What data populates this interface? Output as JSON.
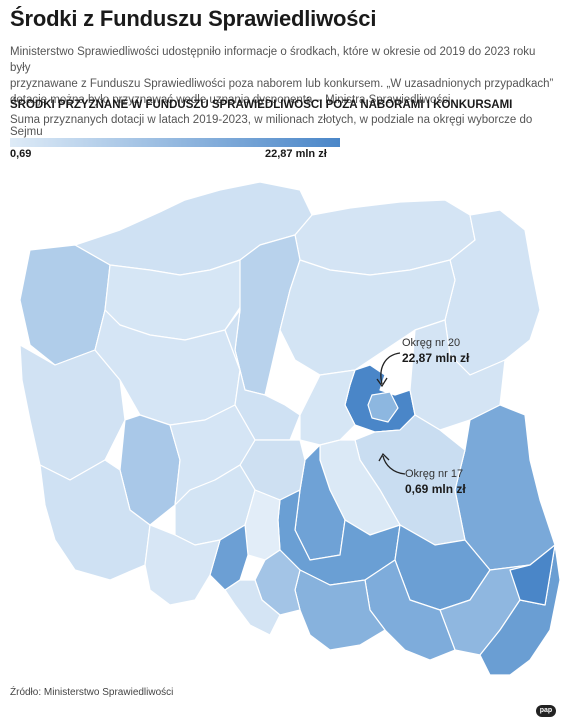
{
  "header": {
    "title": "Środki z Funduszu Sprawiedliwości",
    "intro_lines": [
      "Ministerstwo Sprawiedliwości udostępniło informacje o środkach, które w okresie od 2019 do 2023 roku były",
      "przyznawane z Funduszu Sprawiedliwości poza naborem lub konkursem. „W uzasadnionych przypadkach”",
      "dotacje można było przyznawać wedle uznania dysponenta – Ministra Sprawiedliwości."
    ]
  },
  "map_block": {
    "heading": "ŚRODKI PRZYZNANE W FUNDUSZU SPRAWIEDLIWOŚCI POZA NABORAMI I KONKURSAMI",
    "description": "Suma przyznanych dotacji w latach 2019-2023, w milionach złotych, w podziale na okręgi wyborcze do Sejmu",
    "legend": {
      "min_label": "0,69",
      "max_label": "22,87 mln zł",
      "min_value": 0.69,
      "max_value": 22.87,
      "color_low": "#deebf7",
      "color_high": "#4a86c8"
    },
    "callouts": [
      {
        "district": "Okręg nr 20",
        "value": "22,87 mln zł"
      },
      {
        "district": "Okręg nr 17",
        "value": "0,69 mln zł"
      }
    ]
  },
  "colors": {
    "border": "#ffffff",
    "text": "#1a1a1a",
    "arrow": "#222222"
  },
  "footer": {
    "source": "Źródło: Ministerstwo Sprawiedliwości",
    "logo": "pap"
  }
}
